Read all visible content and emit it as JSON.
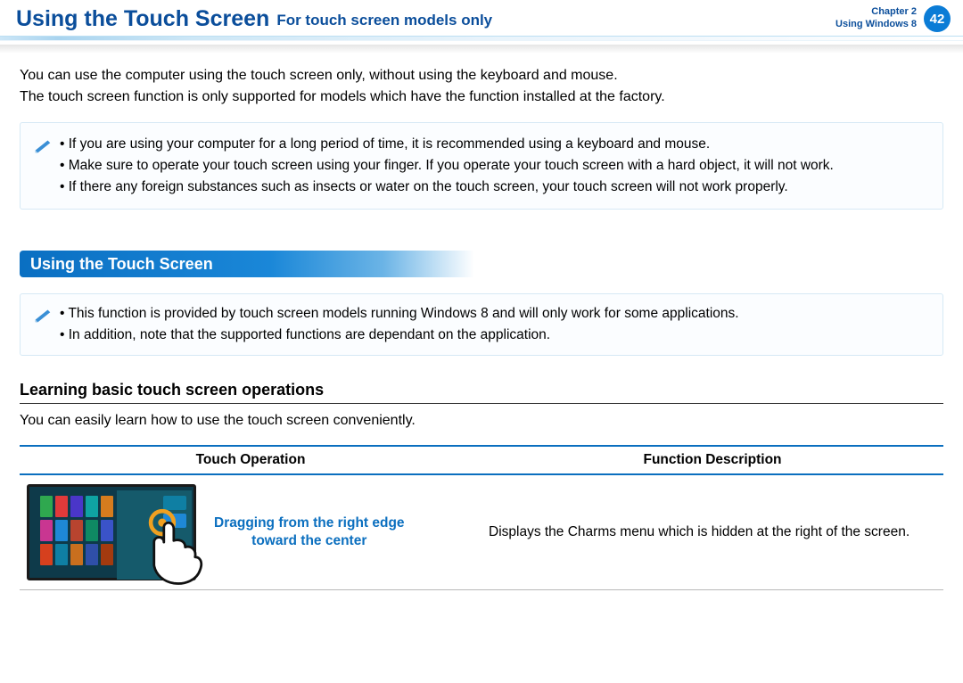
{
  "header": {
    "title": "Using the Touch Screen",
    "subtitle": "For touch screen models only",
    "chapter_line1": "Chapter 2",
    "chapter_line2": "Using Windows 8",
    "page_number": "42"
  },
  "intro": {
    "p1": "You can use the computer using the touch screen only, without using the keyboard and mouse.",
    "p2": "The touch screen function is only supported for models which have the function installed at the factory."
  },
  "note1": {
    "items": [
      "If you are using your computer for a long period of time, it is recommended using a keyboard and mouse.",
      "Make sure to operate your touch screen using your finger. If you operate your touch screen with a hard object, it will not work.",
      "If there any foreign substances such as insects or water on the touch screen, your touch screen will not work properly."
    ]
  },
  "section_title": "Using the Touch Screen",
  "note2": {
    "items": [
      "This function is provided by touch screen models running Windows 8 and will only work for some applications.",
      "In addition, note that the supported functions are dependant on the application."
    ]
  },
  "subhead": "Learning basic touch screen operations",
  "sub_p": "You can easily learn how to use the touch screen conveniently.",
  "table": {
    "col1": "Touch Operation",
    "col2": "Function Description",
    "row1": {
      "label_line1": "Dragging from the right edge",
      "label_line2": "toward the center",
      "desc": "Displays the Charms menu which is hidden at the right of the screen."
    }
  },
  "colors": {
    "brand_blue": "#0b4e9b",
    "accent_blue": "#0b6fbf",
    "badge_blue": "#0b7cd6",
    "note_border": "#d6e9f5",
    "tile_colors": [
      "#2fa84f",
      "#e03a3a",
      "#4a36c9",
      "#0fa3a3",
      "#d67c1e",
      "#c93691",
      "#1e88d6",
      "#b8442f",
      "#0f8a63",
      "#3a53c9",
      "#d6401e",
      "#0f7fa3",
      "#c96f1e",
      "#2f4fa8",
      "#a33a0f"
    ],
    "thumb_right_bg": "#155a6b",
    "touch_ring": "#f0a020"
  }
}
